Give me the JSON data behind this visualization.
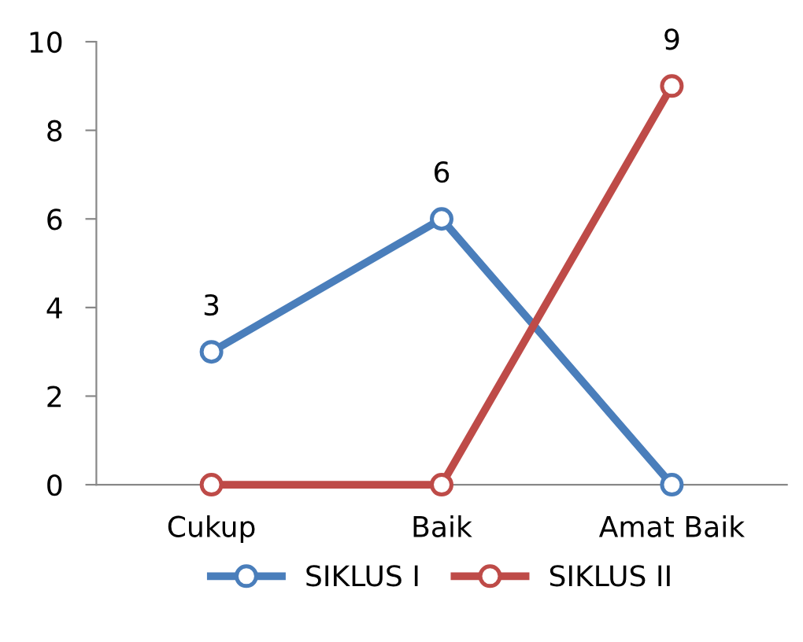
{
  "chart_data": {
    "type": "line",
    "categories": [
      "Cukup",
      "Baik",
      "Amat Baik"
    ],
    "series": [
      {
        "name": "SIKLUS I",
        "color": "#4a7ebb",
        "values": [
          3,
          6,
          0
        ],
        "value_labels": [
          "3",
          "6",
          null
        ]
      },
      {
        "name": "SIKLUS II",
        "color": "#be4b48",
        "values": [
          0,
          0,
          9
        ],
        "value_labels": [
          null,
          null,
          "9"
        ]
      }
    ],
    "ylim": [
      0,
      10
    ],
    "yticks": [
      0,
      2,
      4,
      6,
      8,
      10
    ],
    "grid": false,
    "legend": "bottom",
    "marker": "circle",
    "line_style": "solid"
  }
}
